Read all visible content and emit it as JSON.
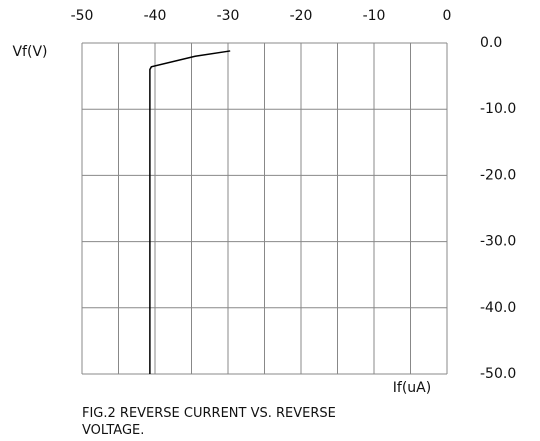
{
  "chart_data": {
    "type": "line",
    "y_label": "Vf(V)",
    "x_label": "If(uA)",
    "caption": [
      "FIG.2 REVERSE CURRENT VS. REVERSE",
      "VOLTAGE."
    ],
    "xlim": [
      -50,
      0
    ],
    "xticks": [
      -50,
      -40,
      -30,
      -20,
      -10,
      0
    ],
    "x_minor_grid": [
      -45,
      -35,
      -25,
      -15,
      -5
    ],
    "ylim": [
      -50,
      0
    ],
    "yticks": [
      {
        "value": 0,
        "label": "0.0"
      },
      {
        "value": -10,
        "label": "-10.0"
      },
      {
        "value": -20,
        "label": "-20.0"
      },
      {
        "value": -30,
        "label": "-30.0"
      },
      {
        "value": -40,
        "label": "-40.0"
      },
      {
        "value": -50,
        "label": "-50.0"
      }
    ],
    "grid": true,
    "series": [
      {
        "color": "#000000",
        "x": [
          -40.7,
          -40.7,
          -40.5,
          -34.5,
          -29.7
        ],
        "values": [
          -50,
          -4.0,
          -3.6,
          -2.0,
          -1.2
        ]
      }
    ]
  }
}
